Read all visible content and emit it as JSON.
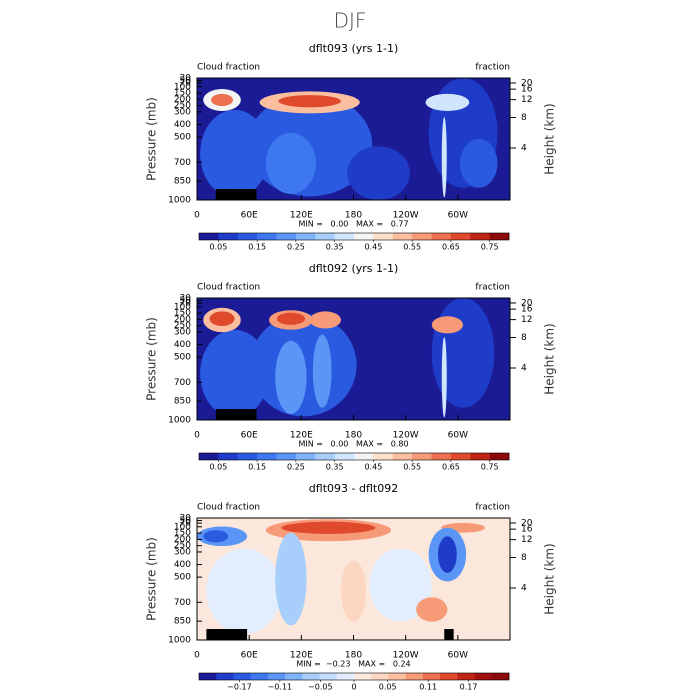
{
  "title": "DJF",
  "chart_data": [
    {
      "type": "contour",
      "title": "dflt093 (yrs 1-1)",
      "left_label": "Cloud fraction",
      "right_label": "fraction",
      "ylabel": "Pressure (mb)",
      "y2label": "Height (km)",
      "ylim": [
        1000,
        30
      ],
      "yticks": [
        30,
        50,
        70,
        100,
        150,
        200,
        250,
        300,
        400,
        500,
        700,
        850,
        1000
      ],
      "y2ticks": [
        20,
        16,
        12,
        8,
        4
      ],
      "xlim": [
        0,
        360
      ],
      "xticks": [
        0,
        {
          "value": 60,
          "label": "60E"
        },
        {
          "value": 120,
          "label": "120E"
        },
        180,
        {
          "value": 240,
          "label": "120W"
        },
        {
          "value": 300,
          "label": "60W"
        }
      ],
      "stats": "MIN =   0.00   MAX =   0.77",
      "clim": [
        0,
        0.8
      ],
      "cticks": [
        0.05,
        0.15,
        0.25,
        0.35,
        0.45,
        0.55,
        0.65,
        0.75
      ],
      "colors": [
        "#1b1b96",
        "#1f3cc8",
        "#2a5ae0",
        "#3d78f0",
        "#5a96f5",
        "#80b4fa",
        "#a8cffc",
        "#d0e6fe",
        "#f4f4f4",
        "#fde0cc",
        "#fbbfa0",
        "#f79a78",
        "#ef7050",
        "#e04a2c",
        "#c02414",
        "#8c0a0a"
      ]
    },
    {
      "type": "contour",
      "title": "dflt092 (yrs 1-1)",
      "left_label": "Cloud fraction",
      "right_label": "fraction",
      "ylabel": "Pressure (mb)",
      "y2label": "Height (km)",
      "ylim": [
        1000,
        30
      ],
      "yticks": [
        30,
        50,
        70,
        100,
        150,
        200,
        250,
        300,
        400,
        500,
        700,
        850,
        1000
      ],
      "y2ticks": [
        20,
        16,
        12,
        8,
        4
      ],
      "xlim": [
        0,
        360
      ],
      "xticks": [
        0,
        {
          "value": 60,
          "label": "60E"
        },
        {
          "value": 120,
          "label": "120E"
        },
        180,
        {
          "value": 240,
          "label": "120W"
        },
        {
          "value": 300,
          "label": "60W"
        }
      ],
      "stats": "MIN =   0.00   MAX =   0.80",
      "clim": [
        0,
        0.8
      ],
      "cticks": [
        0.05,
        0.15,
        0.25,
        0.35,
        0.45,
        0.55,
        0.65,
        0.75
      ],
      "colors": [
        "#1b1b96",
        "#1f3cc8",
        "#2a5ae0",
        "#3d78f0",
        "#5a96f5",
        "#80b4fa",
        "#a8cffc",
        "#d0e6fe",
        "#f4f4f4",
        "#fde0cc",
        "#fbbfa0",
        "#f79a78",
        "#ef7050",
        "#e04a2c",
        "#c02414",
        "#8c0a0a"
      ]
    },
    {
      "type": "contour",
      "title": "dflt093 - dflt092",
      "left_label": "Cloud fraction",
      "right_label": "fraction",
      "ylabel": "Pressure (mb)",
      "y2label": "Height (km)",
      "ylim": [
        1000,
        30
      ],
      "yticks": [
        30,
        50,
        70,
        100,
        150,
        200,
        250,
        300,
        400,
        500,
        700,
        850,
        1000
      ],
      "y2ticks": [
        20,
        16,
        12,
        8,
        4
      ],
      "xlim": [
        0,
        360
      ],
      "xticks": [
        0,
        {
          "value": 60,
          "label": "60E"
        },
        {
          "value": 120,
          "label": "120E"
        },
        180,
        {
          "value": 240,
          "label": "120W"
        },
        {
          "value": 300,
          "label": "60W"
        }
      ],
      "stats": "MIN =  −0.23   MAX =   0.24",
      "clim": [
        -0.23,
        0.23
      ],
      "cticks": [
        {
          "value": -0.17,
          "label": "−0.17"
        },
        {
          "value": -0.11,
          "label": "−0.11"
        },
        {
          "value": -0.05,
          "label": "−0.05"
        },
        0,
        0.05,
        0.11,
        0.17
      ],
      "colors": [
        "#1b1b96",
        "#1f3cc8",
        "#2a5ae0",
        "#3d78f0",
        "#5a96f5",
        "#80b4fa",
        "#a8cffc",
        "#c4dcfd",
        "#e2eefe",
        "#fdeadf",
        "#fcd6c0",
        "#fbbfa0",
        "#f79a78",
        "#ef7050",
        "#e04a2c",
        "#c02414",
        "#a01010",
        "#8c0a0a"
      ]
    }
  ]
}
